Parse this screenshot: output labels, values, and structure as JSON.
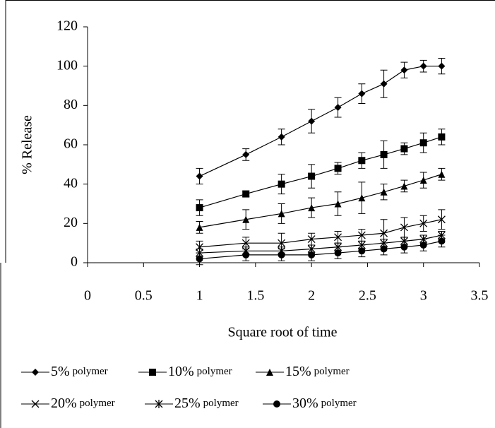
{
  "chart_data": {
    "type": "line",
    "xlabel": "Square root of time",
    "ylabel": "% Release",
    "x": [
      1,
      1.414,
      1.732,
      2,
      2.236,
      2.449,
      2.646,
      2.828,
      3,
      3.162
    ],
    "xlim": [
      0,
      3.5
    ],
    "xticks": [
      0,
      0.5,
      1,
      1.5,
      2,
      2.5,
      3,
      3.5
    ],
    "ylim": [
      0,
      120
    ],
    "yticks": [
      0,
      20,
      40,
      60,
      80,
      100,
      120
    ],
    "series": [
      {
        "name": "5% polymer",
        "color": "#000000",
        "marker": "diamond",
        "values": [
          44,
          55,
          64,
          72,
          79,
          86,
          91,
          98,
          100,
          100
        ],
        "errors": [
          4,
          3,
          4,
          6,
          5,
          5,
          7,
          4,
          3,
          4
        ]
      },
      {
        "name": "10% polymer",
        "color": "#000000",
        "marker": "square",
        "values": [
          28,
          35,
          40,
          44,
          48,
          52,
          55,
          58,
          61,
          64
        ],
        "errors": [
          4,
          1.5,
          5,
          6,
          3,
          4,
          7,
          3,
          5,
          4
        ]
      },
      {
        "name": "15% polymer",
        "color": "#000000",
        "marker": "triangle",
        "values": [
          18,
          22,
          25,
          28,
          30,
          33,
          36,
          39,
          42,
          45
        ],
        "errors": [
          3,
          5,
          5,
          5,
          6,
          8,
          4,
          3,
          4,
          3
        ]
      },
      {
        "name": "20% polymer",
        "color": "#000000",
        "marker": "x",
        "values": [
          8,
          10,
          10,
          12,
          13,
          14,
          15,
          18,
          20,
          22
        ],
        "errors": [
          3,
          3,
          5,
          3,
          3,
          3,
          7,
          5,
          4,
          5
        ]
      },
      {
        "name": "25% polymer",
        "color": "#000000",
        "marker": "star",
        "values": [
          5,
          6,
          6,
          7,
          8,
          9,
          10,
          11,
          12,
          14
        ],
        "errors": [
          2,
          2,
          2,
          2,
          2,
          2,
          2,
          2,
          2,
          2
        ]
      },
      {
        "name": "30% polymer",
        "color": "#000000",
        "marker": "circle",
        "values": [
          2,
          4,
          4,
          4,
          5,
          6,
          7,
          8,
          9,
          11
        ],
        "errors": [
          3,
          3,
          3,
          3,
          3,
          3,
          3,
          3,
          3,
          3
        ]
      }
    ]
  }
}
